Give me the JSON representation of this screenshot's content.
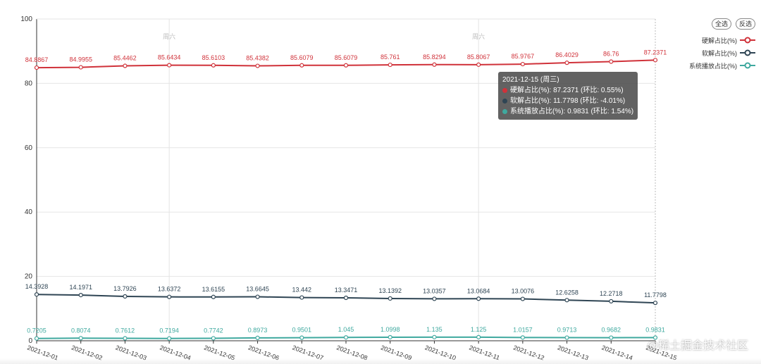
{
  "chart_data": {
    "type": "line",
    "x": [
      "2021-12-01",
      "2021-12-02",
      "2021-12-03",
      "2021-12-04",
      "2021-12-05",
      "2021-12-06",
      "2021-12-07",
      "2021-12-08",
      "2021-12-09",
      "2021-12-10",
      "2021-12-11",
      "2021-12-12",
      "2021-12-13",
      "2021-12-14",
      "2021-12-15"
    ],
    "ylim": [
      0,
      100
    ],
    "yticks": [
      0,
      20,
      40,
      60,
      80,
      100
    ],
    "grid": true,
    "legend_position": "top-right",
    "weekend_markers": [
      {
        "x": "2021-12-04",
        "label": "周六"
      },
      {
        "x": "2021-12-11",
        "label": "周六"
      }
    ],
    "series": [
      {
        "name": "硬解占比(%)",
        "color": "#d0323a",
        "values": [
          84.8867,
          84.9955,
          85.4462,
          85.6434,
          85.6103,
          85.4382,
          85.6079,
          85.6079,
          85.761,
          85.8294,
          85.8067,
          85.9767,
          86.4029,
          86.76,
          87.2371
        ],
        "labels": [
          "84.8867",
          "84.9955",
          "85.4462",
          "85.6434",
          "85.6103",
          "85.4382",
          "85.6079",
          "85.6079",
          "85.761",
          "85.8294",
          "85.8067",
          "85.9767",
          "86.4029",
          "86.76",
          "87.2371"
        ]
      },
      {
        "name": "软解占比(%)",
        "color": "#2f4554",
        "values": [
          14.3928,
          14.1971,
          13.7926,
          13.6372,
          13.6155,
          13.6645,
          13.442,
          13.3471,
          13.1392,
          13.0357,
          13.0684,
          13.0076,
          12.6258,
          12.2718,
          11.7798
        ],
        "labels": [
          "14.3928",
          "14.1971",
          "13.7926",
          "13.6372",
          "13.6155",
          "13.6645",
          "13.442",
          "13.3471",
          "13.1392",
          "13.0357",
          "13.0684",
          "13.0076",
          "12.6258",
          "12.2718",
          "11.7798"
        ]
      },
      {
        "name": "系统播放占比(%)",
        "color": "#3fa99f",
        "values": [
          0.7205,
          0.8074,
          0.7612,
          0.7194,
          0.7742,
          0.8973,
          0.9501,
          1.045,
          1.0998,
          1.135,
          1.125,
          1.0157,
          0.9713,
          0.9682,
          0.9831
        ],
        "labels": [
          "0.7205",
          "0.8074",
          "0.7612",
          "0.7194",
          "0.7742",
          "0.8973",
          "0.9501",
          "1.045",
          "1.0998",
          "1.135",
          "1.125",
          "1.0157",
          "0.9713",
          "0.9682",
          "0.9831"
        ]
      }
    ]
  },
  "legend": {
    "select_all": "全选",
    "invert": "反选"
  },
  "tooltip": {
    "title": "2021-12-15 (周三)",
    "rows": [
      {
        "text": "硬解占比(%): 87.2371 (环比: 0.55%)",
        "color": "#d0323a"
      },
      {
        "text": "软解占比(%): 11.7798 (环比: -4.01%)",
        "color": "#2f4554"
      },
      {
        "text": "系统播放占比(%): 0.9831 (环比: 1.54%)",
        "color": "#3fa99f"
      }
    ]
  },
  "watermark": "@稀土掘金技术社区"
}
